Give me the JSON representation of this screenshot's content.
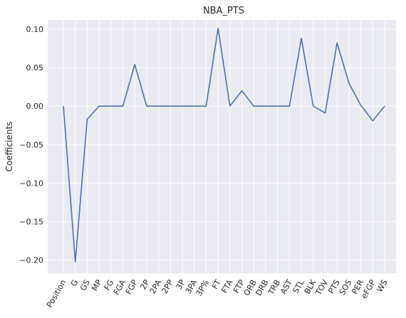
{
  "chart_data": {
    "type": "line",
    "title": "NBA_PTS",
    "xlabel": "",
    "ylabel": "Coefficients",
    "categories": [
      "Position",
      "G",
      "GS",
      "MP",
      "FG",
      "FGA",
      "FGP",
      "2P",
      "2PA",
      "2PP",
      "3P",
      "3PA",
      "3P%",
      "FT",
      "FTA",
      "FTP",
      "ORB",
      "DRB",
      "TRB",
      "AST",
      "STL",
      "BLK",
      "TOV",
      "PTS",
      "SOS",
      "PER",
      "eFGP",
      "WS"
    ],
    "series": [
      {
        "values": [
          0.0,
          -0.202,
          -0.017,
          0.0,
          0.0,
          0.0,
          0.054,
          0.0,
          0.0,
          0.0,
          0.0,
          0.0,
          0.0,
          0.101,
          0.0,
          0.02,
          0.0,
          0.0,
          0.0,
          0.0,
          0.088,
          0.0,
          -0.009,
          0.082,
          0.03,
          0.001,
          -0.019,
          0.0
        ],
        "color": "#4c72b0"
      }
    ],
    "yticks": [
      0.1,
      0.05,
      0.0,
      -0.05,
      -0.1,
      -0.15,
      -0.2
    ],
    "ytick_labels": [
      "0.10",
      "0.05",
      "0.00",
      "−0.05",
      "−0.10",
      "−0.15",
      "−0.20"
    ],
    "ylim": [
      -0.217,
      0.112
    ],
    "grid": true,
    "background": "#eaeaf2",
    "grid_color": "#ffffff"
  }
}
